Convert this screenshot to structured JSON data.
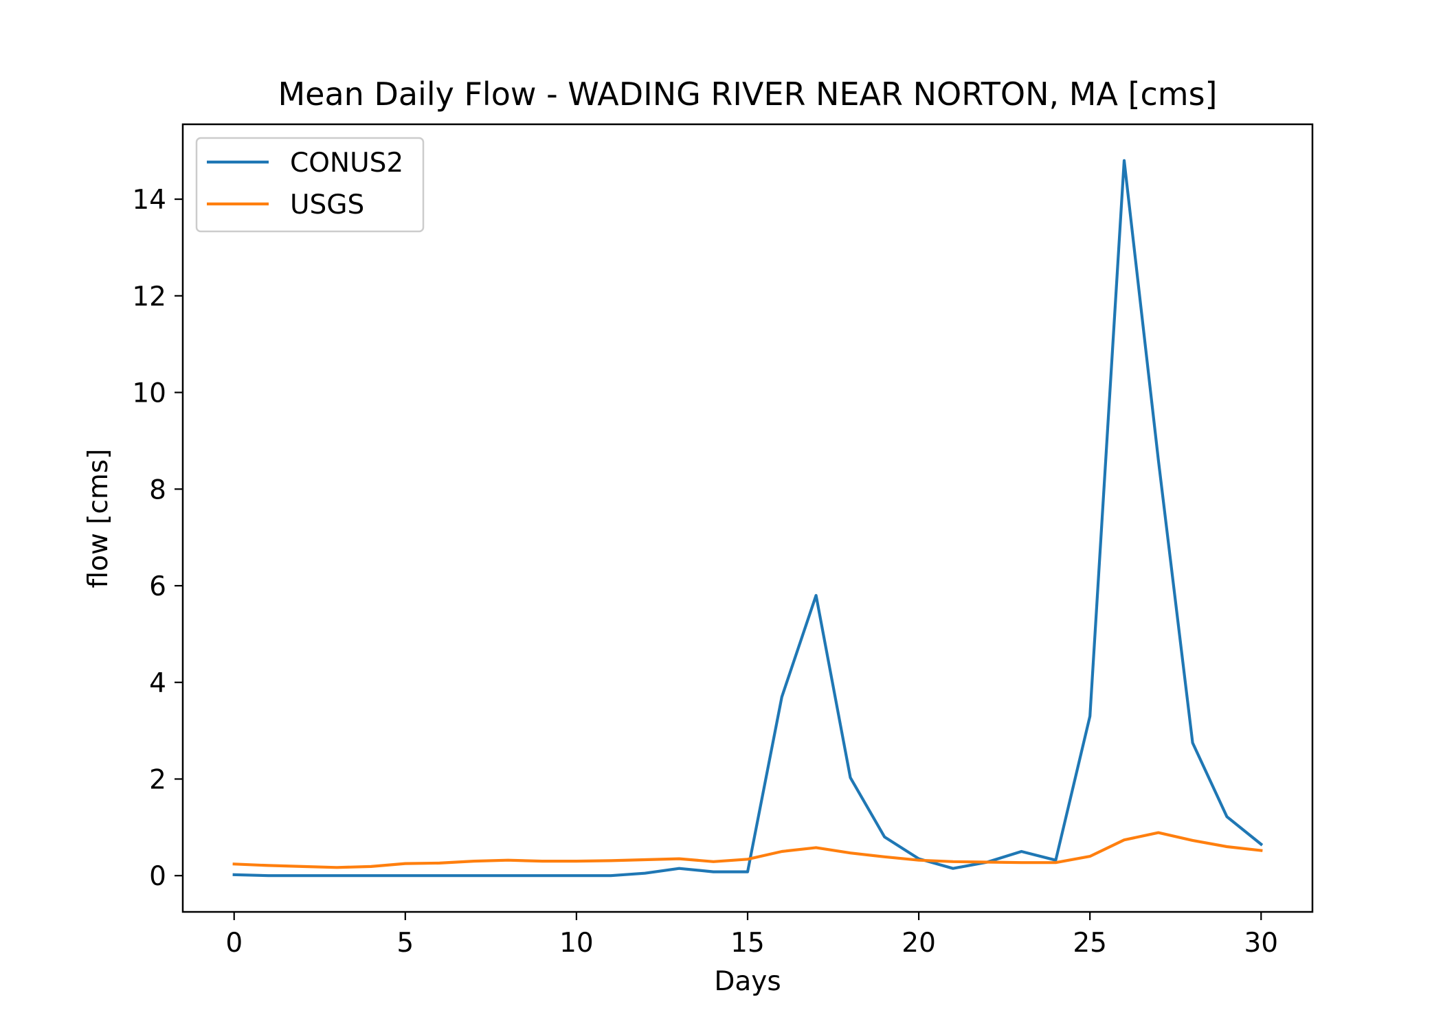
{
  "chart_data": {
    "type": "line",
    "title": "Mean Daily Flow - WADING RIVER NEAR NORTON, MA [cms]",
    "xlabel": "Days",
    "ylabel": "flow [cms]",
    "xlim": [
      -1.5,
      31.5
    ],
    "ylim": [
      -0.75,
      15.55
    ],
    "xticks": [
      0,
      5,
      10,
      15,
      20,
      25,
      30
    ],
    "yticks": [
      0,
      2,
      4,
      6,
      8,
      10,
      12,
      14
    ],
    "grid": false,
    "legend_position": "upper left",
    "x": [
      0,
      1,
      2,
      3,
      4,
      5,
      6,
      7,
      8,
      9,
      10,
      11,
      12,
      13,
      14,
      15,
      16,
      17,
      18,
      19,
      20,
      21,
      22,
      23,
      24,
      25,
      26,
      27,
      28,
      29,
      30
    ],
    "series": [
      {
        "name": "CONUS2",
        "color": "#1f77b4",
        "values": [
          0.02,
          0.0,
          0.0,
          0.0,
          0.0,
          0.0,
          0.0,
          0.0,
          0.0,
          0.0,
          0.0,
          0.0,
          0.05,
          0.15,
          0.08,
          0.08,
          3.7,
          5.8,
          2.03,
          0.8,
          0.35,
          0.15,
          0.28,
          0.5,
          0.32,
          3.3,
          14.8,
          8.6,
          2.75,
          1.22,
          0.65
        ]
      },
      {
        "name": "USGS",
        "color": "#ff7f0e",
        "values": [
          0.24,
          0.21,
          0.19,
          0.17,
          0.19,
          0.25,
          0.26,
          0.3,
          0.32,
          0.3,
          0.3,
          0.31,
          0.33,
          0.35,
          0.29,
          0.34,
          0.5,
          0.58,
          0.47,
          0.39,
          0.32,
          0.29,
          0.28,
          0.27,
          0.27,
          0.4,
          0.74,
          0.89,
          0.73,
          0.6,
          0.52
        ]
      }
    ]
  }
}
